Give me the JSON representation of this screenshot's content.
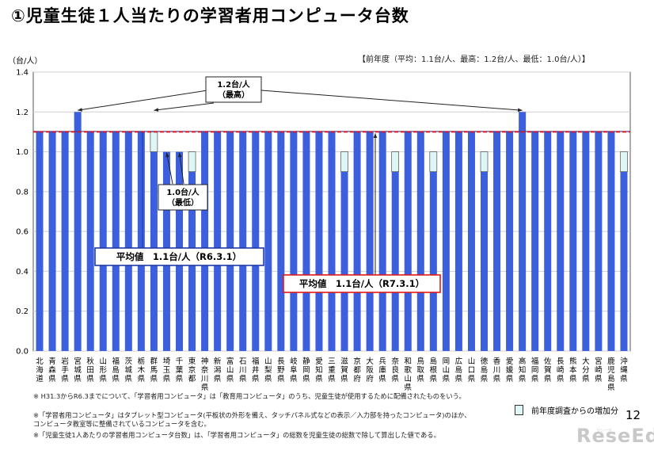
{
  "page": {
    "title": "①児童生徒１人当たりの学習者用コンピュータ台数",
    "prev_year_note": "【前年度（平均：1.1台/人、最高：1.2台/人、最低：1.0台/人）】",
    "page_number": "12",
    "logo_text": "ReseEd",
    "logo_sub": "リシード",
    "notes": [
      "※ H31.3からR6.3までについて、「学習者用コンピュータ」は「教育用コンピュータ」のうち、児童生徒が使用するために配備されたものをいう。",
      "※「学習者用コンピュータ」はタブレット型コンピュータ(平板状の外形を備え、タッチパネル式などの表示／入力部を持ったコンピュータ)のほか、コンピュータ教室等に整備されているコンピュータを含む。",
      "※「児童生徒1人あたりの学習者用コンピュータ台数」は、「学習者用コンピュータ」の総数を児童生徒の総数で除して算出した値である。"
    ]
  },
  "chart_data": {
    "type": "bar",
    "unit_label": "（台/人）",
    "ylim": [
      0.0,
      1.4
    ],
    "yticks": [
      "0.0",
      "0.2",
      "0.4",
      "0.6",
      "0.8",
      "1.0",
      "1.2",
      "1.4"
    ],
    "grid": true,
    "categories": [
      "北海道",
      "青森県",
      "岩手県",
      "宮城県",
      "秋田県",
      "山形県",
      "福島県",
      "茨城県",
      "栃木県",
      "群馬県",
      "埼玉県",
      "千葉県",
      "東京都",
      "神奈川県",
      "新潟県",
      "富山県",
      "石川県",
      "福井県",
      "山梨県",
      "長野県",
      "岐阜県",
      "静岡県",
      "愛知県",
      "三重県",
      "滋賀県",
      "京都府",
      "大阪府",
      "兵庫県",
      "奈良県",
      "和歌山県",
      "鳥取県",
      "島根県",
      "岡山県",
      "広島県",
      "山口県",
      "徳島県",
      "香川県",
      "愛媛県",
      "高知県",
      "福岡県",
      "佐賀県",
      "長崎県",
      "熊本県",
      "大分県",
      "宮崎県",
      "鹿児島県",
      "沖縄県"
    ],
    "series": [
      {
        "name": "",
        "color": "#3b5fdd",
        "values": [
          1.1,
          1.1,
          1.1,
          1.2,
          1.1,
          1.1,
          1.1,
          1.1,
          1.1,
          1.1,
          1.0,
          1.0,
          1.0,
          1.1,
          1.1,
          1.1,
          1.1,
          1.1,
          1.1,
          1.1,
          1.1,
          1.1,
          1.1,
          1.1,
          1.0,
          1.1,
          1.1,
          1.1,
          1.0,
          1.1,
          1.1,
          1.0,
          1.1,
          1.1,
          1.1,
          1.0,
          1.1,
          1.1,
          1.2,
          1.1,
          1.1,
          1.1,
          1.1,
          1.1,
          1.1,
          1.1,
          1.0
        ]
      },
      {
        "name": "前年度調査からの増加分",
        "color": "#dff6f6",
        "values": [
          0,
          0,
          0,
          0,
          0,
          0,
          0,
          0,
          0,
          0.1,
          0,
          0,
          0.1,
          0,
          0,
          0,
          0,
          0,
          0,
          0,
          0,
          0,
          0,
          0,
          0.1,
          0,
          0,
          0,
          0.1,
          0,
          0,
          0.1,
          0,
          0,
          0,
          0.1,
          0,
          0,
          0,
          0,
          0,
          0,
          0,
          0,
          0,
          0,
          0.1
        ]
      }
    ],
    "average_lines": [
      {
        "label": "平均値　1.1台/人（R6.3.1）",
        "value": 1.1,
        "color": "#1f3aa8"
      },
      {
        "label": "平均値　1.1台/人（R7.3.1）",
        "value": 1.1,
        "color": "#e01a1a"
      }
    ],
    "annotations": [
      {
        "text": "1.2台/人",
        "sub": "（最高）"
      },
      {
        "text": "1.0台/人",
        "sub": "（最低）"
      }
    ]
  }
}
